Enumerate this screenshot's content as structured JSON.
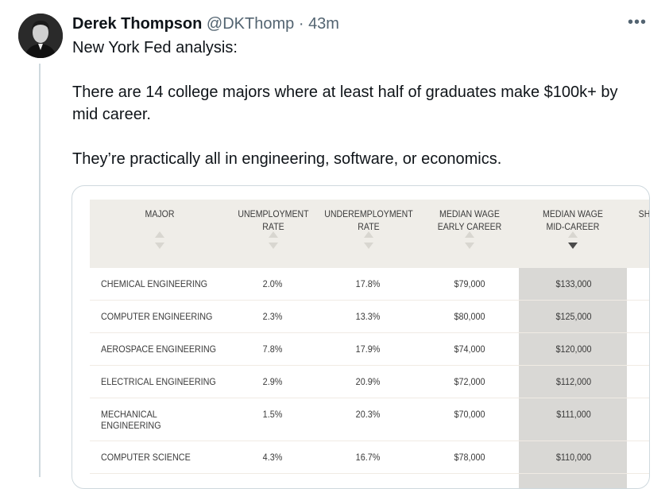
{
  "user": {
    "name": "Derek Thompson",
    "handle": "@DKThomp",
    "separator": "·",
    "time": "43m"
  },
  "more_label": "•••",
  "tweet": {
    "line1": "New York Fed analysis:",
    "line2": "There are 14 college majors where at least half of graduates make $100k+ by mid career.",
    "line3": "They’re practically all in engineering, software, or economics."
  },
  "table": {
    "headers": {
      "major": "MAJOR",
      "unemployment": [
        "UNEMPLOYMENT",
        "RATE"
      ],
      "underemployment": [
        "UNDEREMPLOYMENT",
        "RATE"
      ],
      "early": [
        "MEDIAN WAGE",
        "EARLY CAREER"
      ],
      "mid": [
        "MEDIAN WAGE",
        "MID-CAREER"
      ],
      "share": "SH"
    },
    "rows": [
      {
        "major": "CHEMICAL ENGINEERING",
        "unemp": "2.0%",
        "underemp": "17.8%",
        "early": "$79,000",
        "mid": "$133,000"
      },
      {
        "major": "COMPUTER ENGINEERING",
        "unemp": "2.3%",
        "underemp": "13.3%",
        "early": "$80,000",
        "mid": "$125,000"
      },
      {
        "major": "AEROSPACE ENGINEERING",
        "unemp": "7.8%",
        "underemp": "17.9%",
        "early": "$74,000",
        "mid": "$120,000"
      },
      {
        "major": "ELECTRICAL ENGINEERING",
        "unemp": "2.9%",
        "underemp": "20.9%",
        "early": "$72,000",
        "mid": "$112,000"
      },
      {
        "major_l1": "MECHANICAL",
        "major_l2": "ENGINEERING",
        "unemp": "1.5%",
        "underemp": "20.3%",
        "early": "$70,000",
        "mid": "$111,000"
      },
      {
        "major": "COMPUTER SCIENCE",
        "unemp": "4.3%",
        "underemp": "16.7%",
        "early": "$78,000",
        "mid": "$110,000"
      }
    ]
  },
  "colors": {
    "header_bg": "#efede8",
    "highlight_col": "#d9d8d5",
    "thread_line": "#cfd9de",
    "secondary_text": "#536471"
  }
}
